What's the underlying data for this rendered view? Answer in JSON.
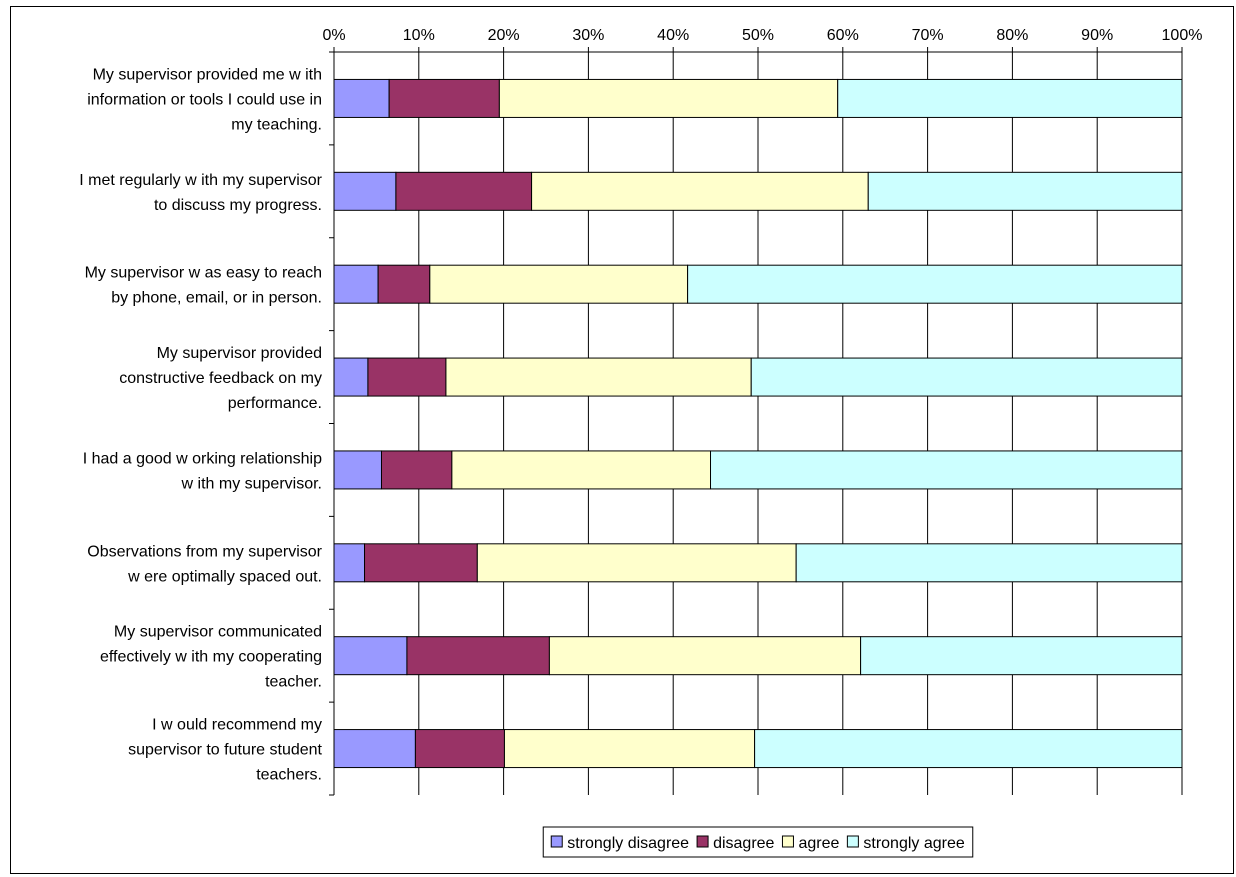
{
  "chart_data": {
    "type": "bar",
    "orientation": "horizontal",
    "stacked": true,
    "normalized": true,
    "xlim": [
      0,
      100
    ],
    "x_ticks": [
      "0%",
      "10%",
      "20%",
      "30%",
      "40%",
      "50%",
      "60%",
      "70%",
      "80%",
      "90%",
      "100%"
    ],
    "x_axis_position": "top",
    "grid": true,
    "legend_position": "bottom",
    "categories": [
      [
        "My supervisor provided me w ith",
        "information or tools I could use in",
        "my teaching."
      ],
      [
        "I met regularly w ith my supervisor",
        "to discuss my progress."
      ],
      [
        "My supervisor w as easy to reach",
        "by phone, email, or in person."
      ],
      [
        "My supervisor provided",
        "constructive feedback on my",
        "performance."
      ],
      [
        "I had a good w orking relationship",
        "w ith my supervisor."
      ],
      [
        "Observations from my supervisor",
        "w ere optimally spaced out."
      ],
      [
        "My supervisor communicated",
        "effectively w ith my cooperating",
        "teacher."
      ],
      [
        "I w ould recommend my",
        "supervisor to future student",
        "teachers."
      ]
    ],
    "series": [
      {
        "name": "strongly disagree",
        "color": "#9999ff",
        "values": [
          6.5,
          7.3,
          5.2,
          4.0,
          5.6,
          3.6,
          8.6,
          9.6
        ]
      },
      {
        "name": "disagree",
        "color": "#993366",
        "values": [
          13.0,
          16.0,
          6.1,
          9.2,
          8.3,
          13.3,
          16.8,
          10.5
        ]
      },
      {
        "name": "agree",
        "color": "#ffffcc",
        "values": [
          39.9,
          39.7,
          30.4,
          36.0,
          30.5,
          37.6,
          36.7,
          29.5
        ]
      },
      {
        "name": "strongly agree",
        "color": "#ccffff",
        "values": [
          40.6,
          37.0,
          58.3,
          50.8,
          55.6,
          45.5,
          37.9,
          50.4
        ]
      }
    ]
  }
}
